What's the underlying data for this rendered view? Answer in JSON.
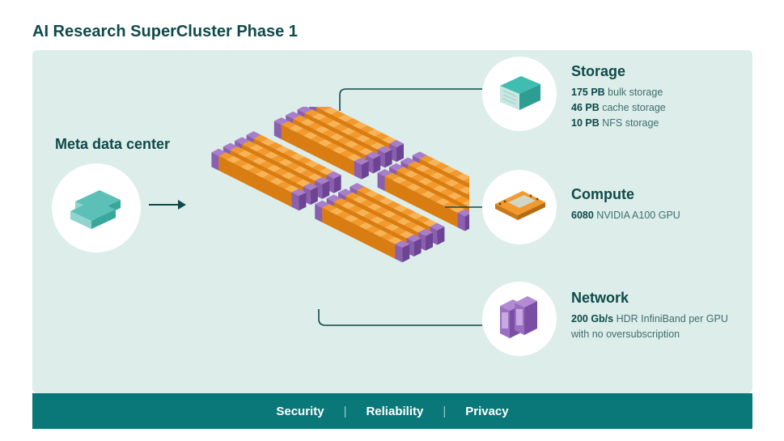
{
  "type": "infographic",
  "title": "AI Research SuperCluster Phase 1",
  "background_color": "#ffffff",
  "canvas_color": "#dcedea",
  "accent_color": "#0f4a4a",
  "circle_bg": "#ffffff",
  "meta": {
    "label": "Meta data center",
    "icon_color_top": "#5cc0b8",
    "icon_color_side": "#8fd4cd"
  },
  "cluster": {
    "rack_top_color": "#f29a2e",
    "rack_top_highlight": "#f7b456",
    "rack_front_color": "#d97d12",
    "endcap_color": "#8a5fb0",
    "endcap_side": "#6d4494",
    "rows_per_pod": 4,
    "racks_per_row": 10,
    "pods": 4
  },
  "connectors": {
    "stroke": "#0f4a4a",
    "width": 1.6
  },
  "storage": {
    "title": "Storage",
    "lines": [
      {
        "bold": "175 PB",
        "rest": " bulk storage"
      },
      {
        "bold": "46 PB",
        "rest": " cache storage"
      },
      {
        "bold": "10 PB",
        "rest": " NFS storage"
      }
    ],
    "icon": {
      "top": "#3fbdb0",
      "front": "#2e9e92",
      "side": "#c8e6e2"
    }
  },
  "compute": {
    "title": "Compute",
    "lines": [
      {
        "bold": "6080",
        "rest": " NVIDIA A100 GPU"
      }
    ],
    "icon": {
      "board": "#f29a2e",
      "chip": "#d0d6c8",
      "trim": "#c9781a"
    }
  },
  "network": {
    "title": "Network",
    "lines": [
      {
        "bold": "200 Gb/s",
        "rest": " HDR InfiniBand per GPU with no oversubscription"
      }
    ],
    "icon": {
      "body": "#9b6fc2",
      "side": "#7a4fa3",
      "panel": "#c9a7e0"
    }
  },
  "footer": {
    "bg": "#0a7878",
    "items": [
      "Security",
      "Reliability",
      "Privacy"
    ]
  },
  "typography": {
    "title_fontsize_pt": 15,
    "section_title_fontsize_pt": 13.5,
    "body_fontsize_pt": 9.5,
    "footer_fontsize_pt": 11,
    "title_weight": 600
  }
}
